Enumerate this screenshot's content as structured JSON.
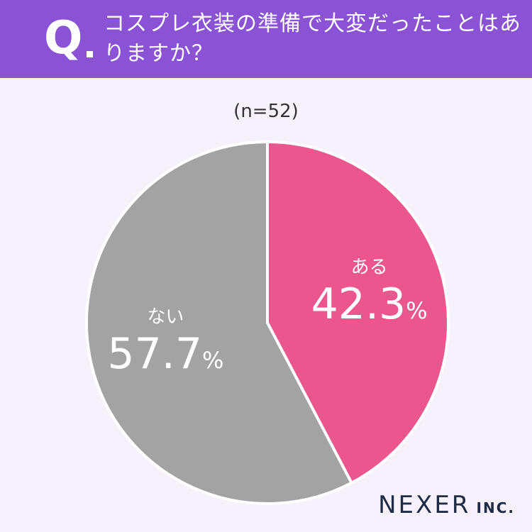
{
  "header": {
    "q_mark": "Q",
    "question": "コスプレ衣装の準備で大変だったことはありますか？",
    "background": "#8a52d4"
  },
  "sample": "(n=52)",
  "chart_data": {
    "type": "pie",
    "title": "",
    "categories": [
      "ある",
      "ない"
    ],
    "values": [
      42.3,
      57.7
    ],
    "value_labels": [
      "42.3",
      "57.7"
    ],
    "unit": "%",
    "colors": [
      "#eb568e",
      "#a3a3a3"
    ],
    "start_angle_deg": 0,
    "direction": "clockwise"
  },
  "logo": {
    "main": "NEXER",
    "sub": "INC."
  }
}
